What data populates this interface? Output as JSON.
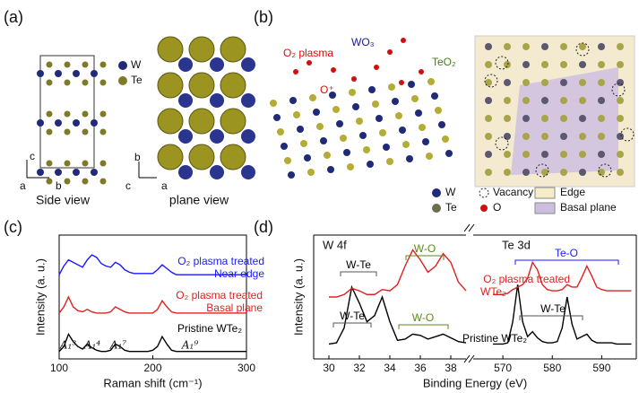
{
  "panel_labels": [
    "(a)",
    "(b)",
    "(c)",
    "(d)"
  ],
  "panel_a": {
    "legend": [
      "W",
      "Te"
    ],
    "side_axes": [
      "c",
      "a",
      "b"
    ],
    "side_caption": "Side view",
    "plane_axes": [
      "b",
      "c",
      "a"
    ],
    "plane_caption": "plane view"
  },
  "panel_b": {
    "labels": [
      "O₂ plasma",
      "O⁺",
      "WO₃",
      "TeO₂"
    ],
    "legend": [
      "W",
      "Te",
      "Vacancy",
      "O",
      "Edge",
      "Basal plane"
    ]
  },
  "chart_data": [
    {
      "type": "line",
      "xlabel": "Raman shift (cm⁻¹)",
      "ylabel": "Intensity (a. u.)",
      "xlim": [
        100,
        300
      ],
      "xticks": [
        100,
        200,
        300
      ],
      "ylim": [
        0,
        1
      ],
      "x": [
        100,
        105,
        110,
        115,
        120,
        125,
        130,
        135,
        140,
        145,
        150,
        155,
        160,
        165,
        170,
        175,
        180,
        185,
        190,
        195,
        200,
        205,
        210,
        215,
        220,
        225,
        230,
        235,
        240,
        245,
        250,
        255,
        260,
        265,
        270,
        275,
        280,
        285,
        290,
        295,
        300
      ],
      "series": [
        {
          "name": "Pristine WTe₂",
          "color": "#000000",
          "values": [
            0.06,
            0.1,
            0.2,
            0.14,
            0.1,
            0.08,
            0.12,
            0.09,
            0.07,
            0.06,
            0.06,
            0.07,
            0.12,
            0.1,
            0.07,
            0.06,
            0.06,
            0.06,
            0.06,
            0.06,
            0.07,
            0.1,
            0.18,
            0.12,
            0.07,
            0.06,
            0.06,
            0.06,
            0.06,
            0.06,
            0.06,
            0.06,
            0.06,
            0.06,
            0.06,
            0.06,
            0.06,
            0.06,
            0.06,
            0.06,
            0.06
          ]
        },
        {
          "name": "O₂ plasma treated",
          "subname": "Basal plane",
          "color": "#e02020",
          "values": [
            0.37,
            0.42,
            0.5,
            0.42,
            0.39,
            0.38,
            0.4,
            0.38,
            0.37,
            0.37,
            0.37,
            0.38,
            0.42,
            0.4,
            0.38,
            0.37,
            0.37,
            0.37,
            0.37,
            0.37,
            0.37,
            0.4,
            0.47,
            0.42,
            0.38,
            0.37,
            0.37,
            0.37,
            0.37,
            0.37,
            0.37,
            0.37,
            0.37,
            0.37,
            0.37,
            0.37,
            0.37,
            0.37,
            0.37,
            0.37,
            0.37
          ]
        },
        {
          "name": "O₂ plasma treated",
          "subname": "Near edge",
          "color": "#1a1aff",
          "values": [
            0.68,
            0.75,
            0.8,
            0.78,
            0.76,
            0.74,
            0.8,
            0.84,
            0.82,
            0.77,
            0.75,
            0.74,
            0.78,
            0.76,
            0.72,
            0.7,
            0.69,
            0.69,
            0.69,
            0.69,
            0.69,
            0.72,
            0.76,
            0.73,
            0.7,
            0.68,
            0.68,
            0.68,
            0.68,
            0.68,
            0.68,
            0.68,
            0.68,
            0.68,
            0.68,
            0.68,
            0.68,
            0.68,
            0.68,
            0.68,
            0.68
          ]
        }
      ],
      "annotations": [
        "A₁³",
        "A₁⁴",
        "A₁⁷",
        "A₁⁹"
      ]
    },
    {
      "type": "line",
      "xlabel": "Binding Energy (eV)",
      "ylabel": "Intensity (a. u.)",
      "ylim": [
        0,
        1
      ],
      "series": [
        {
          "name": "Pristine WTe₂",
          "color": "#000000"
        },
        {
          "name": "O₂ plasma treated",
          "subname": "WTe₂",
          "color": "#e02020"
        }
      ],
      "panels": [
        {
          "title": "W 4f",
          "xlim": [
            29,
            39
          ],
          "xticks": [
            30,
            32,
            34,
            36,
            38
          ],
          "x": [
            30,
            30.5,
            31,
            31.5,
            32,
            32.5,
            33,
            33.5,
            34,
            34.5,
            35,
            35.5,
            36,
            36.5,
            37,
            37.5,
            38,
            38.5,
            39
          ],
          "series": [
            {
              "values": [
                0.12,
                0.13,
                0.25,
                0.58,
                0.45,
                0.3,
                0.35,
                0.5,
                0.3,
                0.15,
                0.16,
                0.2,
                0.19,
                0.16,
                0.18,
                0.2,
                0.17,
                0.14,
                0.13
              ]
            },
            {
              "values": [
                0.5,
                0.5,
                0.52,
                0.57,
                0.55,
                0.52,
                0.52,
                0.56,
                0.55,
                0.6,
                0.75,
                0.88,
                0.8,
                0.7,
                0.75,
                0.85,
                0.78,
                0.62,
                0.55
              ]
            }
          ],
          "annotations": [
            "W-Te",
            "W-O",
            "W-Te",
            "W-O"
          ]
        },
        {
          "title": "Te 3d",
          "xlim": [
            564,
            597
          ],
          "xticks": [
            570,
            580,
            590
          ],
          "x": [
            568,
            569,
            570,
            571,
            572,
            573,
            574,
            575,
            576,
            577,
            578,
            579,
            580,
            581,
            582,
            583,
            584,
            585,
            586,
            587,
            588,
            589,
            590,
            591,
            592,
            593,
            594,
            595,
            596
          ],
          "series": [
            {
              "values": [
                0.12,
                0.12,
                0.12,
                0.13,
                0.3,
                0.6,
                0.3,
                0.18,
                0.22,
                0.17,
                0.14,
                0.13,
                0.13,
                0.14,
                0.25,
                0.5,
                0.28,
                0.16,
                0.18,
                0.2,
                0.15,
                0.13,
                0.13,
                0.13,
                0.13,
                0.12,
                0.12,
                0.12,
                0.12
              ]
            },
            {
              "values": [
                0.52,
                0.52,
                0.52,
                0.53,
                0.56,
                0.58,
                0.6,
                0.65,
                0.78,
                0.72,
                0.6,
                0.56,
                0.55,
                0.55,
                0.56,
                0.6,
                0.58,
                0.58,
                0.66,
                0.75,
                0.67,
                0.58,
                0.56,
                0.55,
                0.55,
                0.55,
                0.55,
                0.55,
                0.55
              ]
            }
          ],
          "annotations": [
            "Te-O",
            "W-Te"
          ]
        }
      ]
    }
  ]
}
